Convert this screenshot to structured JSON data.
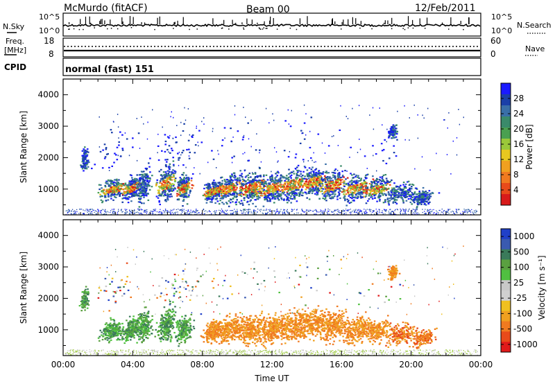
{
  "header": {
    "title": "McMurdo (fitACF)",
    "beam": "Beam 00",
    "date": "12/Feb/2011"
  },
  "top_panel": {
    "left_label": "N.Sky",
    "right_label": "N.Search",
    "left_ticks": [
      "10^5",
      "10^0"
    ],
    "right_ticks": [
      "10^5",
      "10^0"
    ]
  },
  "freq_panel": {
    "left_label_1": "Freq.",
    "left_label_2": "[MHz]",
    "right_label": "Nave",
    "left_ticks": [
      "18",
      "8"
    ],
    "right_ticks": [
      "60",
      "0"
    ]
  },
  "cpid_panel": {
    "label": "CPID",
    "text": "normal (fast) 151"
  },
  "chart_data": [
    {
      "type": "heatmap",
      "name": "power",
      "ylabel": "Slant Range [km]",
      "ylim": [
        180,
        4500
      ],
      "yticks": [
        "1000",
        "2000",
        "3000",
        "4000"
      ],
      "xticks": [
        "00:00",
        "04:00",
        "08:00",
        "12:00",
        "16:00",
        "20:00",
        "00:00"
      ],
      "colorbar": {
        "label": "Power [dB]",
        "ticks": [
          "4",
          "8",
          "12",
          "16",
          "20",
          "24",
          "28"
        ],
        "colors": [
          "#1a1aff",
          "#1a3fa8",
          "#3a6fa8",
          "#3a8a6a",
          "#4aa050",
          "#9ac83a",
          "#e8c820",
          "#f0a020",
          "#f07a20",
          "#e84a1a",
          "#d81a1a"
        ]
      }
    },
    {
      "type": "heatmap",
      "name": "velocity",
      "ylabel": "Slant Range [km]",
      "ylim": [
        180,
        4500
      ],
      "yticks": [
        "1000",
        "2000",
        "3000",
        "4000"
      ],
      "xticks": [
        "00:00",
        "04:00",
        "08:00",
        "12:00",
        "16:00",
        "20:00",
        "00:00"
      ],
      "xlabel": "Time UT",
      "colorbar": {
        "label": "Velocity [m s⁻¹]",
        "ticks": [
          "1000",
          "500",
          "100",
          "25",
          "-25",
          "-100",
          "-500",
          "-1000"
        ],
        "colors": [
          "#2040c8",
          "#3a5ab0",
          "#3a7a5a",
          "#5aa040",
          "#50c040",
          "#c8c8c8",
          "#d0d0d0",
          "#f0c020",
          "#f0a020",
          "#f07a20",
          "#e84a1a",
          "#e01a1a"
        ]
      }
    }
  ]
}
